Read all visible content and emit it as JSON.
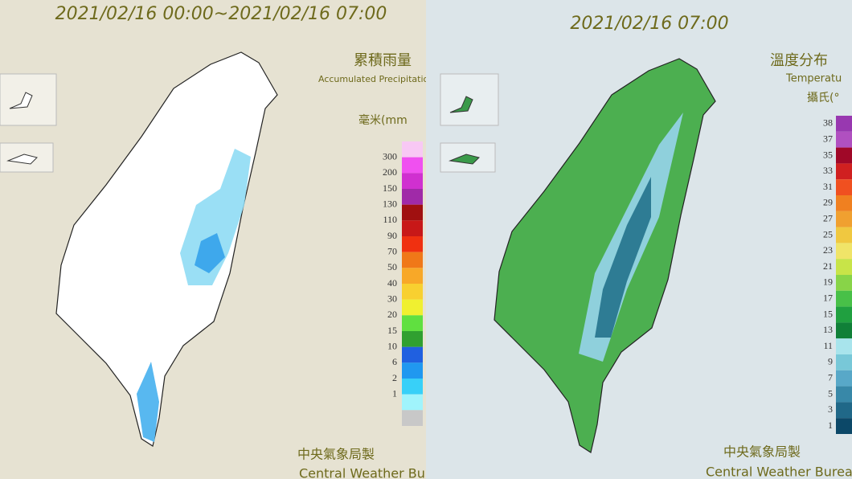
{
  "left": {
    "title": "2021/02/16 00:00~2021/02/16 07:00",
    "legend": {
      "title": "累積雨量",
      "subtitle": "Accumulated Precipitation",
      "unit": "毫米(mm",
      "colors": [
        "#f8c8f4",
        "#f050f0",
        "#d030d0",
        "#a02aa8",
        "#a01010",
        "#c81818",
        "#f03010",
        "#f07818",
        "#f8a828",
        "#f8d030",
        "#f0f030",
        "#60e040",
        "#30a030",
        "#2060e0",
        "#2098f0",
        "#38d0f8",
        "#a0f4fc",
        "#c8c8c8"
      ],
      "labels": [
        300,
        200,
        150,
        130,
        110,
        90,
        70,
        50,
        40,
        30,
        20,
        15,
        10,
        6,
        2,
        1
      ]
    },
    "footer": "中央氣象局製",
    "footer_en": "Central Weather Bureau"
  },
  "right": {
    "title": "2021/02/16 07:00",
    "legend": {
      "title": "溫度分布",
      "subtitle": "Temperatu",
      "unit": "攝氏(°",
      "colors": [
        "#9838b0",
        "#b050c0",
        "#a00828",
        "#d02020",
        "#f05020",
        "#f08020",
        "#f0a030",
        "#f0c840",
        "#f0e468",
        "#c8e448",
        "#88d448",
        "#48c048",
        "#20a040",
        "#108038",
        "#a8e4ec",
        "#78c8d8",
        "#58a8c8",
        "#3888a8",
        "#206888",
        "#0c4868"
      ],
      "labels": [
        38,
        37,
        35,
        33,
        31,
        29,
        27,
        25,
        23,
        21,
        19,
        17,
        15,
        13,
        11,
        9,
        7,
        5,
        3,
        1
      ]
    },
    "footer": "中央氣象局製",
    "footer_en": "Central Weather Bureau"
  }
}
